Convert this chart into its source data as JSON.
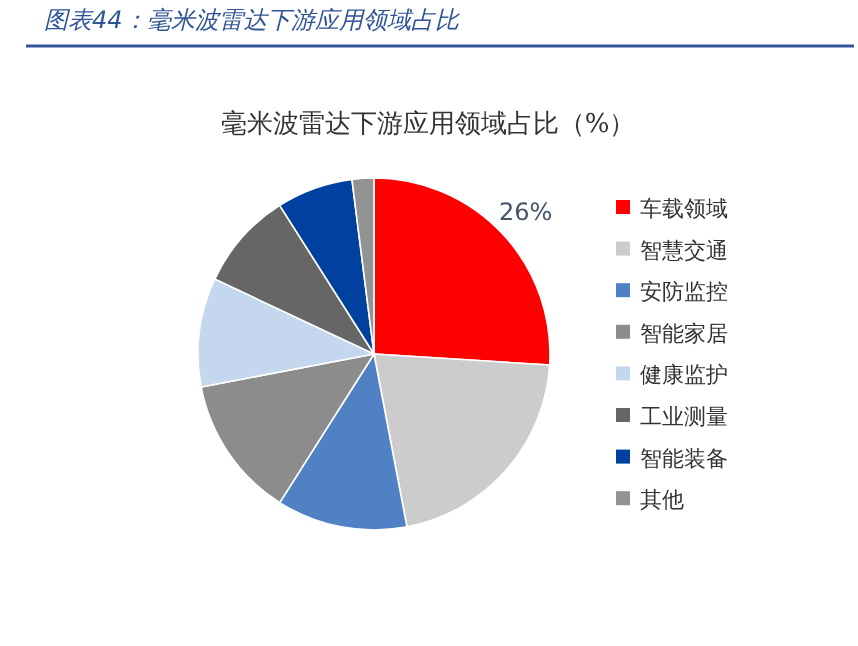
{
  "chart_data": {
    "type": "pie",
    "title": "毫米波雷达下游应用领域占比（%）",
    "annotations": [
      "图表44：毫米波雷达下游应用领域占比"
    ],
    "categories": [
      "车载领域",
      "智慧交通",
      "安防监控",
      "智能家居",
      "健康监护",
      "工业测量",
      "智能装备",
      "其他"
    ],
    "values": [
      26,
      21,
      12,
      13,
      10,
      9,
      7,
      2
    ],
    "colors": [
      "#ff0000",
      "#cccccc",
      "#4f81c4",
      "#8c8c8c",
      "#c5d7ee",
      "#666666",
      "#0041a0",
      "#939393"
    ],
    "value_labels": [
      "26%",
      null,
      null,
      null,
      null,
      null,
      null,
      null
    ],
    "legend": "right"
  }
}
